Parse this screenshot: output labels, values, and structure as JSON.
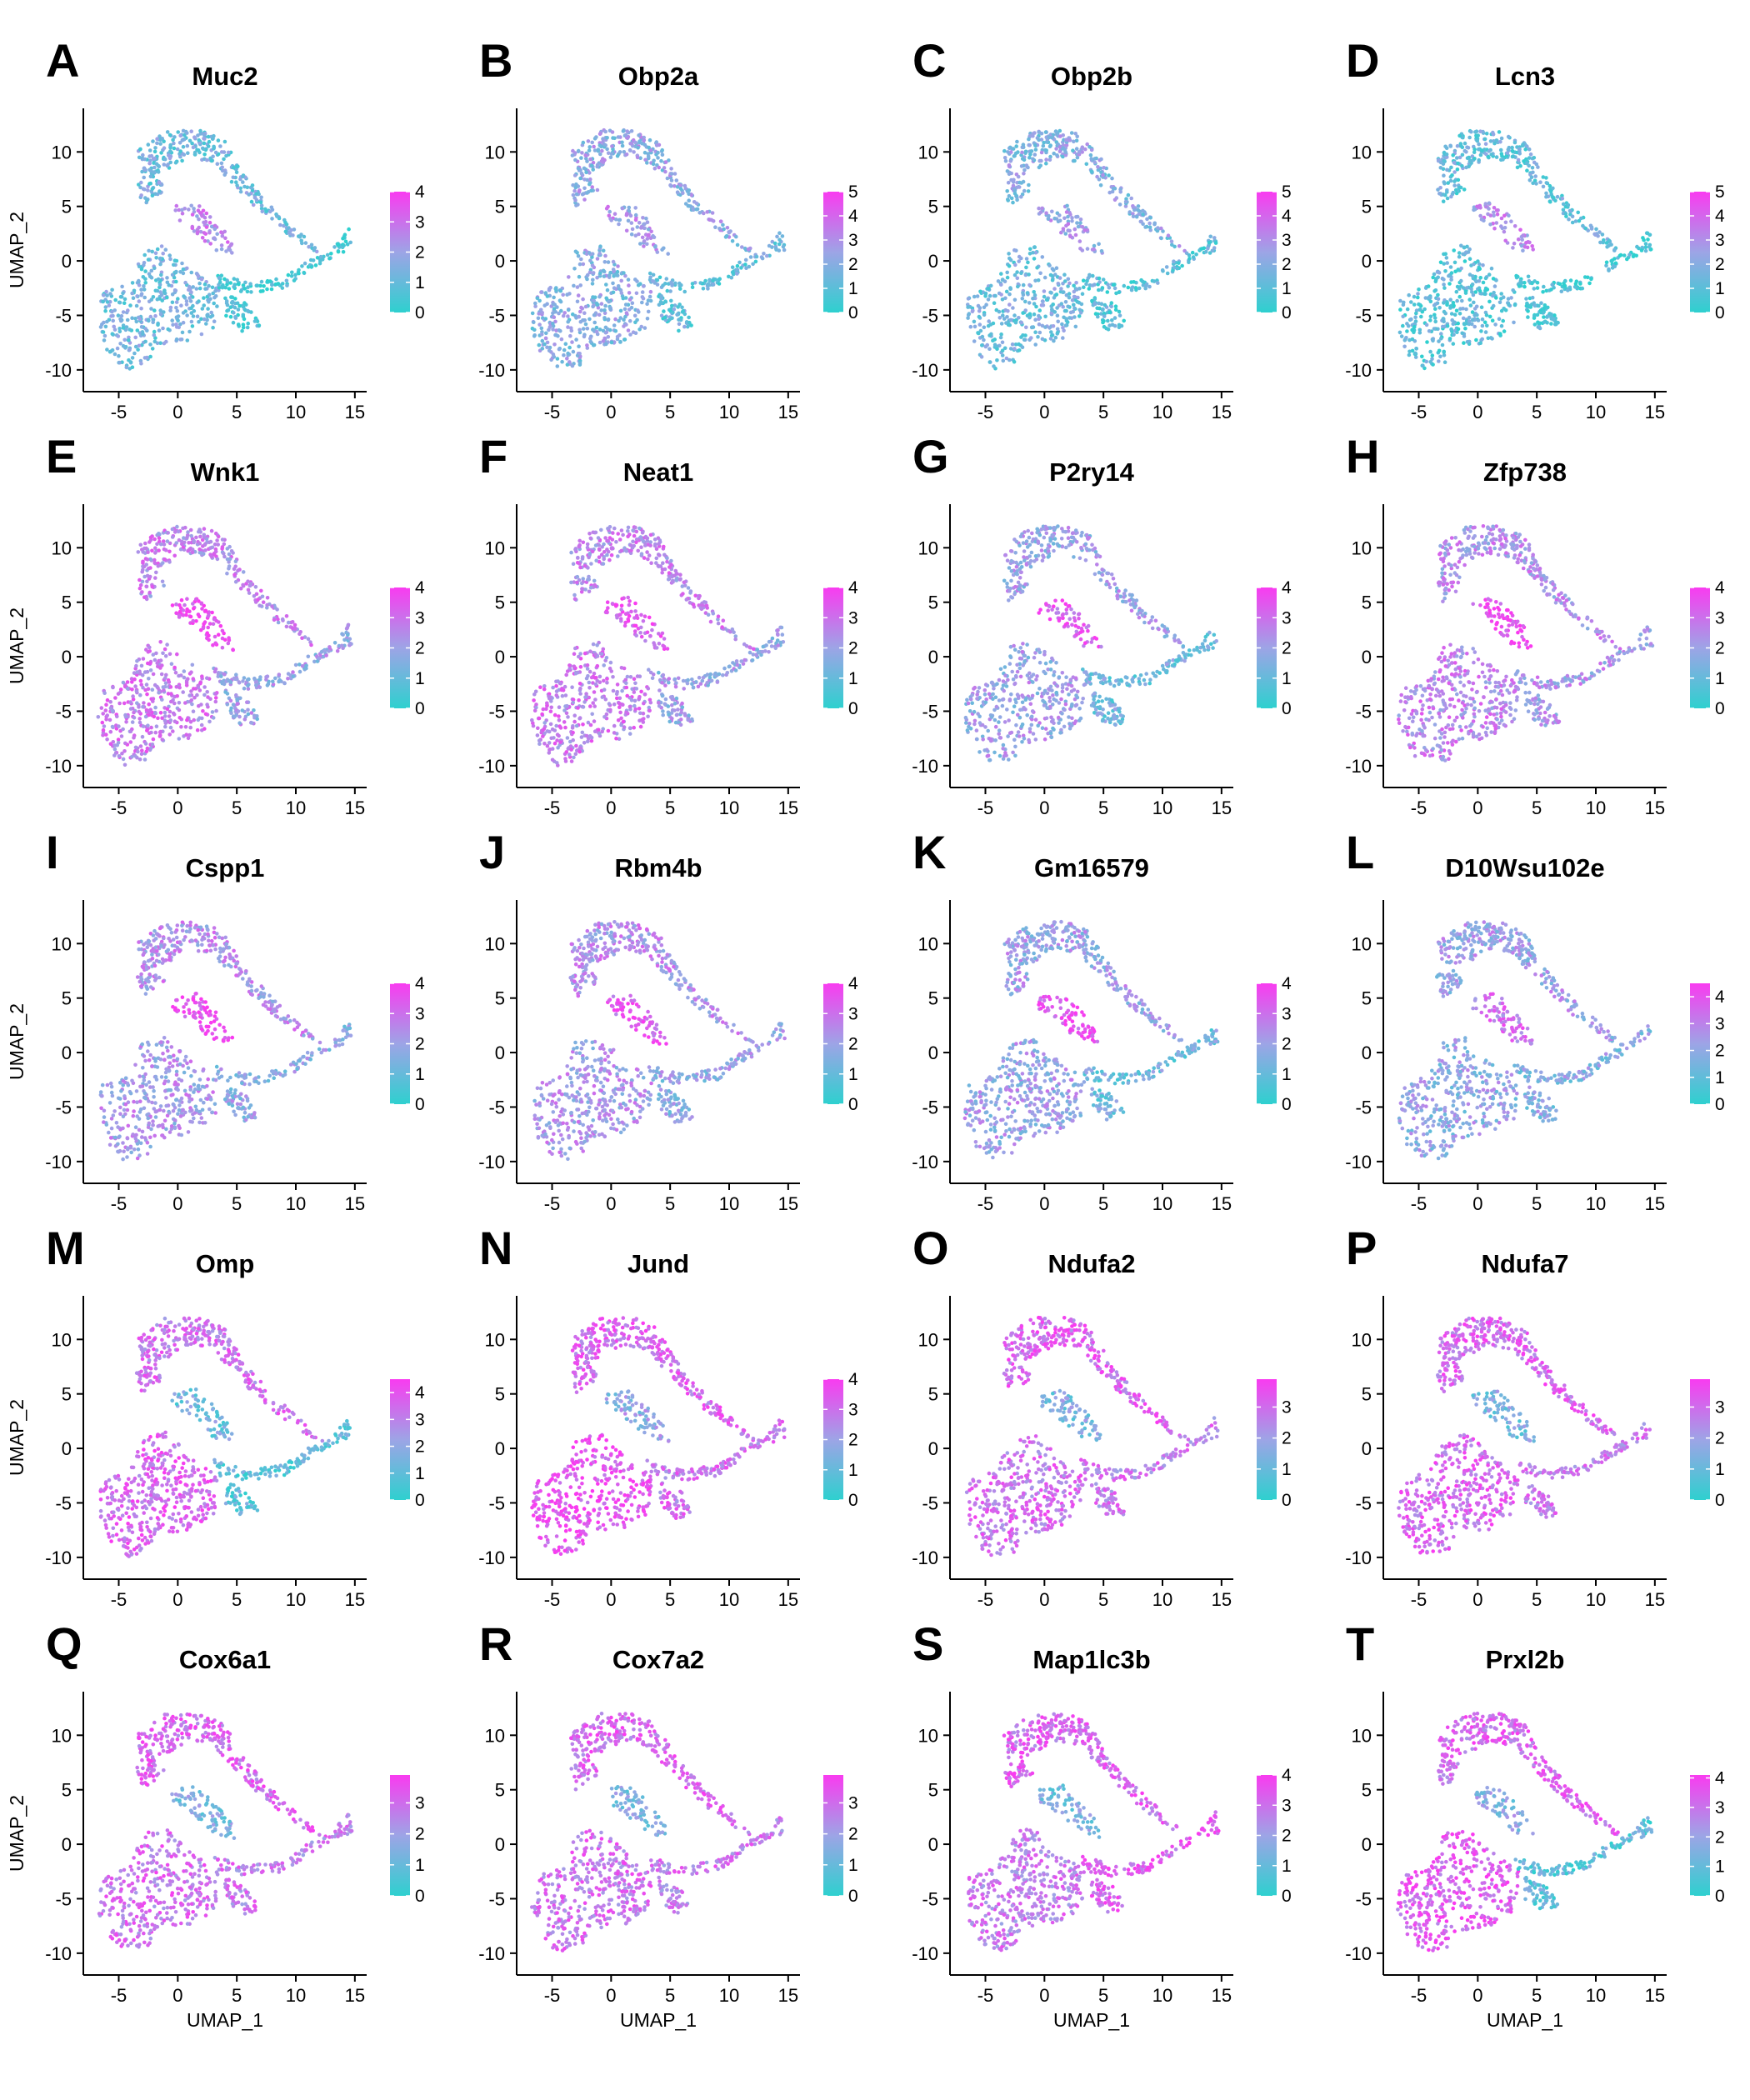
{
  "figure": {
    "axis_labels": {
      "x": "UMAP_1",
      "y": "UMAP_2"
    },
    "colormap": {
      "low": "#2ed0cf",
      "mid": "#9da4e6",
      "high": "#f93bf0"
    },
    "x_ticks": [
      "-5",
      "0",
      "5",
      "10",
      "15"
    ],
    "y_ticks": [
      "10",
      "5",
      "0",
      "-5",
      "-10"
    ]
  },
  "chart_data": [
    {
      "type": "scatter",
      "letter": "A",
      "title": "Muc2",
      "xlim": [
        -8,
        16
      ],
      "ylim": [
        -12,
        14
      ],
      "color_scale": [
        0,
        4
      ],
      "colorbar_ticks": [
        "4",
        "3",
        "2",
        "1",
        "0"
      ],
      "level": {
        "main_blob": 0.3,
        "island": 0.65,
        "upper_arm": 0.3,
        "tail": 0.1
      }
    },
    {
      "type": "scatter",
      "letter": "B",
      "title": "Obp2a",
      "xlim": [
        -8,
        16
      ],
      "ylim": [
        -12,
        14
      ],
      "color_scale": [
        0,
        5
      ],
      "colorbar_ticks": [
        "5",
        "4",
        "3",
        "2",
        "1",
        "0"
      ],
      "level": {
        "main_blob": 0.4,
        "island": 0.55,
        "upper_arm": 0.45,
        "tail": 0.25
      }
    },
    {
      "type": "scatter",
      "letter": "C",
      "title": "Obp2b",
      "xlim": [
        -8,
        16
      ],
      "ylim": [
        -12,
        14
      ],
      "color_scale": [
        0,
        5
      ],
      "colorbar_ticks": [
        "5",
        "4",
        "3",
        "2",
        "1",
        "0"
      ],
      "level": {
        "main_blob": 0.3,
        "island": 0.5,
        "upper_arm": 0.4,
        "tail": 0.2
      }
    },
    {
      "type": "scatter",
      "letter": "D",
      "title": "Lcn3",
      "xlim": [
        -8,
        16
      ],
      "ylim": [
        -12,
        14
      ],
      "color_scale": [
        0,
        5
      ],
      "colorbar_ticks": [
        "5",
        "4",
        "3",
        "2",
        "1",
        "0"
      ],
      "level": {
        "main_blob": 0.2,
        "island": 0.6,
        "upper_arm": 0.25,
        "tail": 0.1
      }
    },
    {
      "type": "scatter",
      "letter": "E",
      "title": "Wnk1",
      "xlim": [
        -8,
        16
      ],
      "ylim": [
        -12,
        14
      ],
      "color_scale": [
        0,
        4
      ],
      "colorbar_ticks": [
        "4",
        "3",
        "2",
        "1",
        "0"
      ],
      "level": {
        "main_blob": 0.7,
        "island": 0.95,
        "upper_arm": 0.65,
        "tail": 0.5
      }
    },
    {
      "type": "scatter",
      "letter": "F",
      "title": "Neat1",
      "xlim": [
        -8,
        16
      ],
      "ylim": [
        -12,
        14
      ],
      "color_scale": [
        0,
        4
      ],
      "colorbar_ticks": [
        "4",
        "3",
        "2",
        "1",
        "0"
      ],
      "level": {
        "main_blob": 0.7,
        "island": 0.85,
        "upper_arm": 0.65,
        "tail": 0.5
      }
    },
    {
      "type": "scatter",
      "letter": "G",
      "title": "P2ry14",
      "xlim": [
        -8,
        16
      ],
      "ylim": [
        -12,
        14
      ],
      "color_scale": [
        0,
        4
      ],
      "colorbar_ticks": [
        "4",
        "3",
        "2",
        "1",
        "0"
      ],
      "level": {
        "main_blob": 0.5,
        "island": 0.85,
        "upper_arm": 0.5,
        "tail": 0.3
      }
    },
    {
      "type": "scatter",
      "letter": "H",
      "title": "Zfp738",
      "xlim": [
        -8,
        16
      ],
      "ylim": [
        -12,
        14
      ],
      "color_scale": [
        0,
        4
      ],
      "colorbar_ticks": [
        "4",
        "3",
        "2",
        "1",
        "0"
      ],
      "level": {
        "main_blob": 0.65,
        "island": 0.95,
        "upper_arm": 0.6,
        "tail": 0.55
      }
    },
    {
      "type": "scatter",
      "letter": "I",
      "title": "Cspp1",
      "xlim": [
        -8,
        16
      ],
      "ylim": [
        -12,
        14
      ],
      "color_scale": [
        0,
        4
      ],
      "colorbar_ticks": [
        "4",
        "3",
        "2",
        "1",
        "0"
      ],
      "level": {
        "main_blob": 0.55,
        "island": 0.95,
        "upper_arm": 0.6,
        "tail": 0.45
      }
    },
    {
      "type": "scatter",
      "letter": "J",
      "title": "Rbm4b",
      "xlim": [
        -8,
        16
      ],
      "ylim": [
        -12,
        14
      ],
      "color_scale": [
        0,
        4
      ],
      "colorbar_ticks": [
        "4",
        "3",
        "2",
        "1",
        "0"
      ],
      "level": {
        "main_blob": 0.55,
        "island": 0.85,
        "upper_arm": 0.6,
        "tail": 0.45
      }
    },
    {
      "type": "scatter",
      "letter": "K",
      "title": "Gm16579",
      "xlim": [
        -8,
        16
      ],
      "ylim": [
        -12,
        14
      ],
      "color_scale": [
        0,
        4
      ],
      "colorbar_ticks": [
        "4",
        "3",
        "2",
        "1",
        "0"
      ],
      "level": {
        "main_blob": 0.5,
        "island": 0.9,
        "upper_arm": 0.5,
        "tail": 0.3
      }
    },
    {
      "type": "scatter",
      "letter": "L",
      "title": "D10Wsu102e",
      "xlim": [
        -8,
        16
      ],
      "ylim": [
        -12,
        14
      ],
      "color_scale": [
        0,
        4.5
      ],
      "colorbar_ticks": [
        "4",
        "3",
        "2",
        "1",
        "0"
      ],
      "level": {
        "main_blob": 0.45,
        "island": 0.75,
        "upper_arm": 0.5,
        "tail": 0.4
      }
    },
    {
      "type": "scatter",
      "letter": "M",
      "title": "Omp",
      "xlim": [
        -8,
        16
      ],
      "ylim": [
        -12,
        14
      ],
      "color_scale": [
        0,
        4.5
      ],
      "colorbar_ticks": [
        "4",
        "3",
        "2",
        "1",
        "0"
      ],
      "level": {
        "main_blob": 0.8,
        "island": 0.3,
        "upper_arm": 0.75,
        "tail": 0.2
      }
    },
    {
      "type": "scatter",
      "letter": "N",
      "title": "Jund",
      "xlim": [
        -8,
        16
      ],
      "ylim": [
        -12,
        14
      ],
      "color_scale": [
        0,
        4
      ],
      "colorbar_ticks": [
        "4",
        "3",
        "2",
        "1",
        "0"
      ],
      "level": {
        "main_blob": 0.9,
        "island": 0.45,
        "upper_arm": 0.8,
        "tail": 0.75
      }
    },
    {
      "type": "scatter",
      "letter": "O",
      "title": "Ndufa2",
      "xlim": [
        -8,
        16
      ],
      "ylim": [
        -12,
        14
      ],
      "color_scale": [
        0,
        3.9
      ],
      "colorbar_ticks": [
        "3",
        "2",
        "1",
        "0"
      ],
      "level": {
        "main_blob": 0.75,
        "island": 0.35,
        "upper_arm": 0.8,
        "tail": 0.7
      }
    },
    {
      "type": "scatter",
      "letter": "P",
      "title": "Ndufa7",
      "xlim": [
        -8,
        16
      ],
      "ylim": [
        -12,
        14
      ],
      "color_scale": [
        0,
        3.9
      ],
      "colorbar_ticks": [
        "3",
        "2",
        "1",
        "0"
      ],
      "level": {
        "main_blob": 0.8,
        "island": 0.35,
        "upper_arm": 0.8,
        "tail": 0.7
      }
    },
    {
      "type": "scatter",
      "letter": "Q",
      "title": "Cox6a1",
      "xlim": [
        -8,
        16
      ],
      "ylim": [
        -12,
        14
      ],
      "color_scale": [
        0,
        3.9
      ],
      "colorbar_ticks": [
        "3",
        "2",
        "1",
        "0"
      ],
      "level": {
        "main_blob": 0.75,
        "island": 0.35,
        "upper_arm": 0.8,
        "tail": 0.7
      }
    },
    {
      "type": "scatter",
      "letter": "R",
      "title": "Cox7a2",
      "xlim": [
        -8,
        16
      ],
      "ylim": [
        -12,
        14
      ],
      "color_scale": [
        0,
        3.9
      ],
      "colorbar_ticks": [
        "3",
        "2",
        "1",
        "0"
      ],
      "level": {
        "main_blob": 0.75,
        "island": 0.35,
        "upper_arm": 0.8,
        "tail": 0.7
      }
    },
    {
      "type": "scatter",
      "letter": "S",
      "title": "Map1lc3b",
      "xlim": [
        -8,
        16
      ],
      "ylim": [
        -12,
        14
      ],
      "color_scale": [
        0,
        4
      ],
      "colorbar_ticks": [
        "4",
        "3",
        "2",
        "1",
        "0"
      ],
      "level": {
        "main_blob": 0.7,
        "island": 0.35,
        "upper_arm": 0.8,
        "tail": 0.85
      }
    },
    {
      "type": "scatter",
      "letter": "T",
      "title": "Prxl2b",
      "xlim": [
        -8,
        16
      ],
      "ylim": [
        -12,
        14
      ],
      "color_scale": [
        0,
        4.1
      ],
      "colorbar_ticks": [
        "4",
        "3",
        "2",
        "1",
        "0"
      ],
      "level": {
        "main_blob": 0.85,
        "island": 0.4,
        "upper_arm": 0.8,
        "tail": 0.2
      }
    }
  ]
}
